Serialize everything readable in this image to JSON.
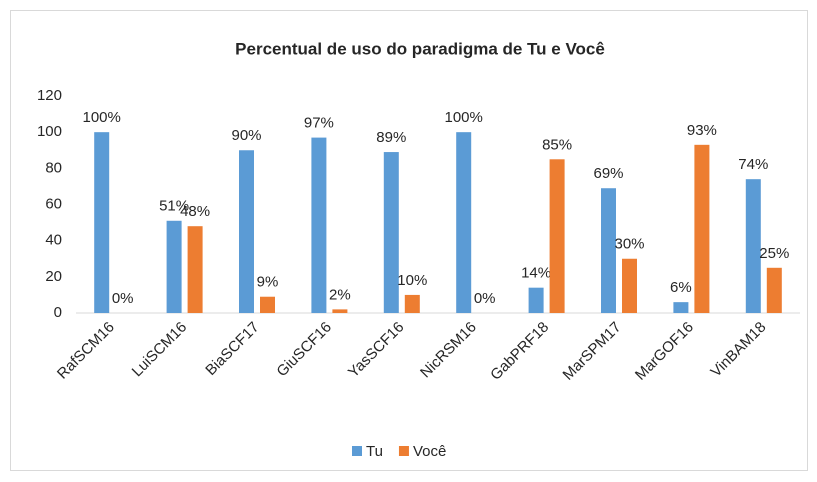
{
  "chart_data": {
    "type": "bar",
    "title": "Percentual de uso do paradigma de Tu e Você",
    "categories": [
      "RafSCM16",
      "LuiSCM16",
      "BiaSCF17",
      "GiuSCF16",
      "YasSCF16",
      "NicRSM16",
      "GabPRF18",
      "MarSPM17",
      "MarGOF16",
      "VinBAM18"
    ],
    "series": [
      {
        "name": "Tu",
        "color": "#5b9bd5",
        "values": [
          100,
          51,
          90,
          97,
          89,
          100,
          14,
          69,
          6,
          74
        ],
        "value_labels": [
          "100%",
          "51%",
          "90%",
          "97%",
          "89%",
          "100%",
          "14%",
          "69%",
          "6%",
          "74%"
        ]
      },
      {
        "name": "Você",
        "color": "#ed7d31",
        "values": [
          0,
          48,
          9,
          2,
          10,
          0,
          85,
          30,
          93,
          25
        ],
        "value_labels": [
          "0%",
          "48%",
          "9%",
          "2%",
          "10%",
          "0%",
          "85%",
          "30%",
          "93%",
          "25%"
        ]
      }
    ],
    "ylim": [
      0,
      120
    ],
    "yticks": [
      0,
      20,
      40,
      60,
      80,
      100,
      120
    ],
    "grid": false,
    "legend": "bottom"
  }
}
